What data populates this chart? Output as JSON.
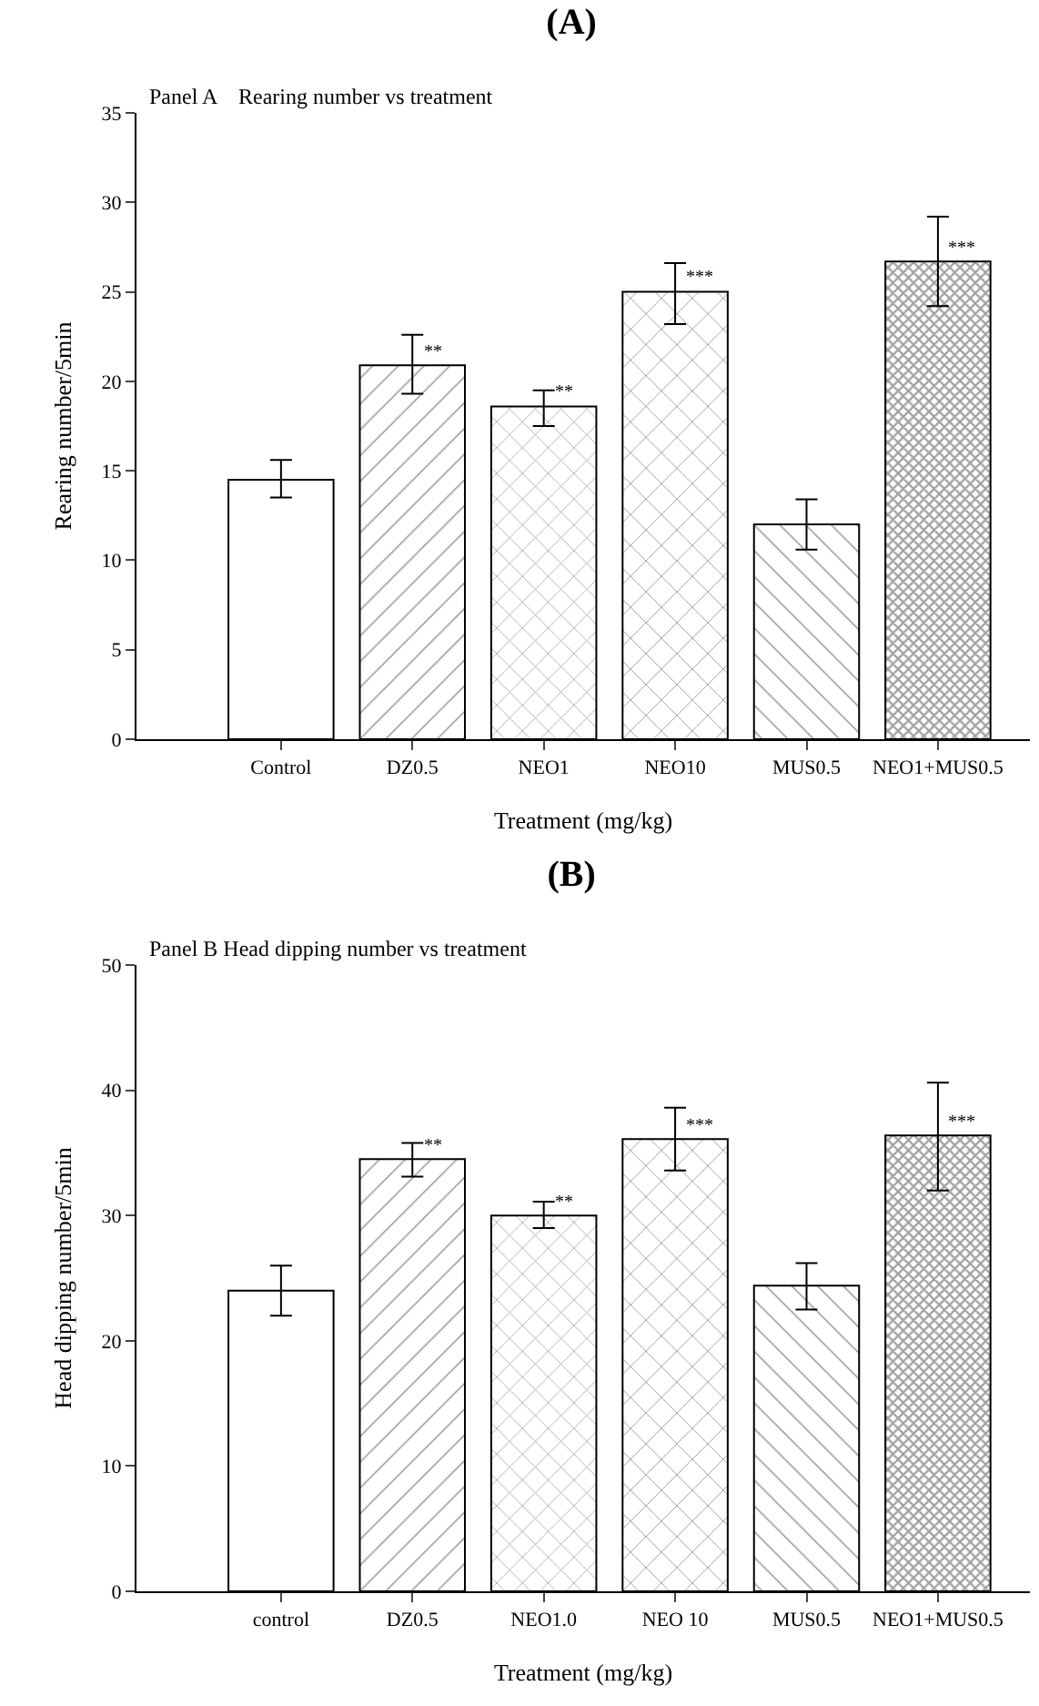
{
  "chart_data": [
    {
      "type": "bar",
      "title": "(A)",
      "subtitle": "Panel A    Rearing number vs treatment",
      "xlabel": "Treatment (mg/kg)",
      "ylabel": "Rearing number/5min",
      "categories": [
        "Control",
        "DZ0.5",
        "NEO1",
        "NEO10",
        "MUS0.5",
        "NEO1+MUS0.5"
      ],
      "values": [
        14.5,
        20.9,
        18.6,
        25.0,
        12.0,
        26.7
      ],
      "errors": [
        [
          13.5,
          15.6
        ],
        [
          19.3,
          22.6
        ],
        [
          17.5,
          19.5
        ],
        [
          23.2,
          26.6
        ],
        [
          10.6,
          13.4
        ],
        [
          24.2,
          29.2
        ]
      ],
      "colors": [
        "#ffffff",
        "#000000",
        "#000000",
        "#000000",
        "#000000",
        "#000000"
      ],
      "ylim": [
        0,
        35
      ],
      "yticks": [
        0,
        5,
        10,
        15,
        20,
        25,
        30,
        35
      ],
      "grid": false,
      "annotations": [
        {
          "text": "**",
          "x": "DZ0.5",
          "y": 20.9
        },
        {
          "text": "**",
          "x": "NEO1",
          "y": 18.6
        },
        {
          "text": "***",
          "x": "NEO10",
          "y": 25.0
        },
        {
          "text": "***",
          "x": "NEO1+MUS0.5",
          "y": 26.7
        }
      ]
    },
    {
      "type": "bar",
      "title": "(B)",
      "subtitle": "Panel B Head dipping number vs treatment",
      "xlabel": "Treatment (mg/kg)",
      "ylabel": "Head dipping number/5min",
      "categories": [
        "control",
        "DZ0.5",
        "NEO1.0",
        "NEO 10",
        "MUS0.5",
        "NEO1+MUS0.5"
      ],
      "values": [
        24.0,
        34.5,
        30.0,
        36.1,
        24.4,
        36.4
      ],
      "errors": [
        [
          22.0,
          26.0
        ],
        [
          33.1,
          35.8
        ],
        [
          29.0,
          31.1
        ],
        [
          33.6,
          38.6
        ],
        [
          22.5,
          26.2
        ],
        [
          32.0,
          40.6
        ]
      ],
      "colors": [
        "#ffffff",
        "#000000",
        "#000000",
        "#000000",
        "#000000",
        "#000000"
      ],
      "ylim": [
        0,
        50
      ],
      "yticks": [
        0,
        10,
        20,
        30,
        40,
        50
      ],
      "grid": false,
      "annotations": [
        {
          "text": "**",
          "x": "DZ0.5",
          "y": 34.5
        },
        {
          "text": "**",
          "x": "NEO1.0",
          "y": 30.0
        },
        {
          "text": "***",
          "x": "NEO 10",
          "y": 36.1
        },
        {
          "text": "***",
          "x": "NEO1+MUS0.5",
          "y": 36.4
        }
      ]
    }
  ]
}
